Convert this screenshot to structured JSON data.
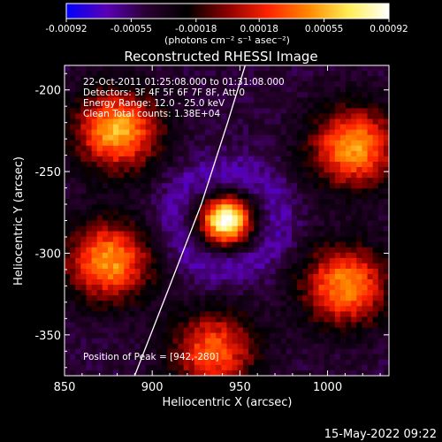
{
  "chart_data": {
    "type": "heatmap",
    "title": "Reconstructed RHESSI Image",
    "xlabel": "Heliocentric X (arcsec)",
    "ylabel": "Heliocentric Y (arcsec)",
    "xlim": [
      850,
      1035
    ],
    "ylim": [
      -375,
      -185
    ],
    "x_ticks": [
      850,
      900,
      950,
      1000
    ],
    "y_ticks": [
      -200,
      -250,
      -300,
      -350
    ],
    "colorbar": {
      "min": -0.00092,
      "max": 0.00092,
      "ticks": [
        "-0.00092",
        "-0.00055",
        "-0.00018",
        "0.00018",
        "0.00055",
        "0.00092"
      ],
      "unit_label": "(photons cm⁻² s⁻¹ asec⁻²)",
      "colormap": [
        "#0000ff",
        "#5a00b4",
        "#2a0030",
        "#000000",
        "#8c0000",
        "#ff2200",
        "#ff8800",
        "#ffee55",
        "#ffffff"
      ]
    },
    "annotations": [
      "22-Oct-2011 01:25:08.000 to 01:31:08.000",
      "Detectors: 3F 4F 5F 6F 7F 8F, Att 0",
      "Energy Range: 12.0 - 25.0 keV",
      "Clean    Total counts: 1.38E+04"
    ],
    "peak_label": "Position of Peak = [942,-280]",
    "peak": {
      "x": 942,
      "y": -280
    },
    "limb_curve": [
      [
        890,
        -375
      ],
      [
        910,
        -320
      ],
      [
        928,
        -270
      ],
      [
        943,
        -220
      ],
      [
        953,
        -185
      ]
    ],
    "sources": [
      {
        "x": 942,
        "y": -280,
        "value": 0.00092
      },
      {
        "x": 880,
        "y": -225,
        "value": 0.00045
      },
      {
        "x": 1015,
        "y": -235,
        "value": 0.00042
      },
      {
        "x": 875,
        "y": -305,
        "value": 0.0004
      },
      {
        "x": 1010,
        "y": -320,
        "value": 0.00038
      },
      {
        "x": 935,
        "y": -360,
        "value": 0.00025
      }
    ],
    "grid": false
  },
  "footer": {
    "date": "15-May-2022 09:22"
  }
}
